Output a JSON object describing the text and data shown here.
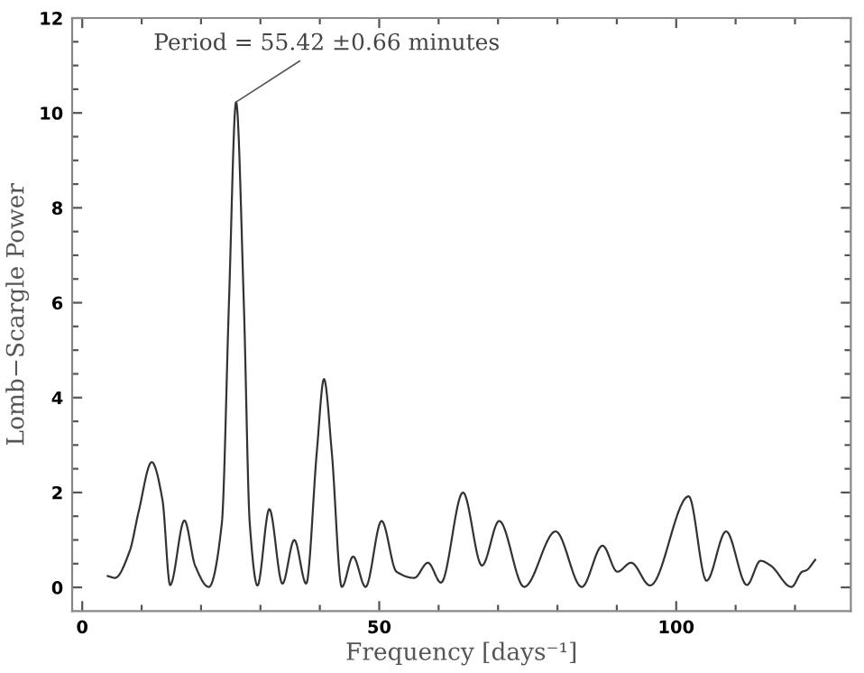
{
  "chart_data": {
    "type": "line",
    "xlabel": "Frequency [days⁻¹]",
    "ylabel": "Lomb−Scargle Power",
    "annotations": [
      {
        "text": "Period = 55.42 ±0.66 minutes",
        "x": 25.9,
        "y": 10.23
      }
    ],
    "xlim": [
      -1.7,
      129.4
    ],
    "ylim": [
      -0.5,
      12
    ],
    "xticks": [
      0,
      {
        "value": 10,
        "label": null
      },
      {
        "value": 20,
        "label": null
      },
      {
        "value": 30,
        "label": null
      },
      {
        "value": 40,
        "label": null
      },
      50,
      {
        "value": 60,
        "label": null
      },
      {
        "value": 70,
        "label": null
      },
      {
        "value": 80,
        "label": null
      },
      {
        "value": 90,
        "label": null
      },
      100,
      {
        "value": 110,
        "label": null
      },
      {
        "value": 120,
        "label": null
      }
    ],
    "yticks": [
      0,
      {
        "value": 0.5,
        "label": null
      },
      {
        "value": 1,
        "label": null
      },
      {
        "value": 1.5,
        "label": null
      },
      2,
      {
        "value": 2.5,
        "label": null
      },
      {
        "value": 3,
        "label": null
      },
      {
        "value": 3.5,
        "label": null
      },
      4,
      {
        "value": 4.5,
        "label": null
      },
      {
        "value": 5,
        "label": null
      },
      {
        "value": 5.5,
        "label": null
      },
      6,
      {
        "value": 6.5,
        "label": null
      },
      {
        "value": 7,
        "label": null
      },
      {
        "value": 7.5,
        "label": null
      },
      8,
      {
        "value": 8.5,
        "label": null
      },
      {
        "value": 9,
        "label": null
      },
      {
        "value": 9.5,
        "label": null
      },
      10,
      {
        "value": 10.5,
        "label": null
      },
      {
        "value": 11,
        "label": null
      },
      {
        "value": 11.5,
        "label": null
      },
      12
    ],
    "grid": false,
    "legend": false,
    "marker": "none",
    "line_style": "solid",
    "series": [
      {
        "color": "#333333",
        "x": [
          4.3,
          5.5,
          8.0,
          9.5,
          11.7,
          13.5,
          14.8,
          17.2,
          19.0,
          21.3,
          23.5,
          24.7,
          25.9,
          27.2,
          28.2,
          29.5,
          31.5,
          33.7,
          35.7,
          37.7,
          39.5,
          40.7,
          42.0,
          43.7,
          45.6,
          47.7,
          50.4,
          52.9,
          55.9,
          58.2,
          60.4,
          64.1,
          67.3,
          70.2,
          74.4,
          79.7,
          84.1,
          87.6,
          90.1,
          92.4,
          95.6,
          102.1,
          105.1,
          108.4,
          111.9,
          114.2,
          115.9,
          119.4,
          121.2,
          121.9,
          123.4
        ],
        "values": [
          0.24,
          0.2,
          0.77,
          1.6,
          2.64,
          1.85,
          0.05,
          1.41,
          0.46,
          0.01,
          1.35,
          6.0,
          10.23,
          6.0,
          1.35,
          0.04,
          1.65,
          0.08,
          1.0,
          0.08,
          2.87,
          4.39,
          2.87,
          0.01,
          0.65,
          0.01,
          1.4,
          0.33,
          0.2,
          0.52,
          0.1,
          2.0,
          0.46,
          1.4,
          0.01,
          1.18,
          0.01,
          0.88,
          0.33,
          0.52,
          0.04,
          1.92,
          0.14,
          1.18,
          0.05,
          0.56,
          0.46,
          0.01,
          0.33,
          0.36,
          0.58
        ]
      }
    ]
  }
}
